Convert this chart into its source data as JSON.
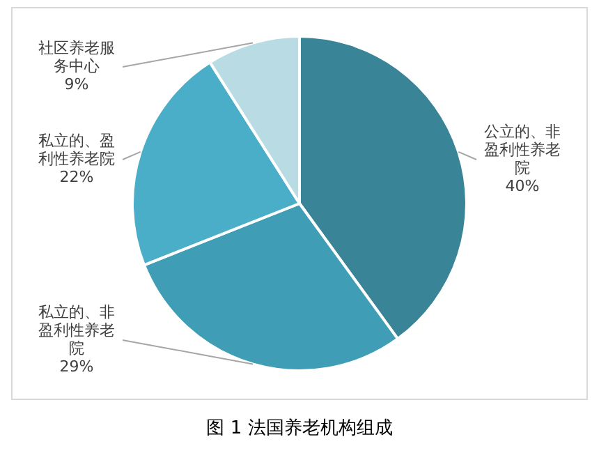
{
  "chart_data": {
    "type": "pie",
    "title": "图 1 法国养老机构组成",
    "categories": [
      "公立的、非盈利性养老院",
      "私立的、非盈利性养老院",
      "私立的、盈利性养老院",
      "社区养老服务中心"
    ],
    "values": [
      40,
      29,
      22,
      9
    ],
    "colors": [
      "#3a8498",
      "#3f9db6",
      "#4aaec8",
      "#b8dbe4"
    ],
    "value_labels": [
      "40%",
      "29%",
      "22%",
      "9%"
    ],
    "legend": false
  }
}
